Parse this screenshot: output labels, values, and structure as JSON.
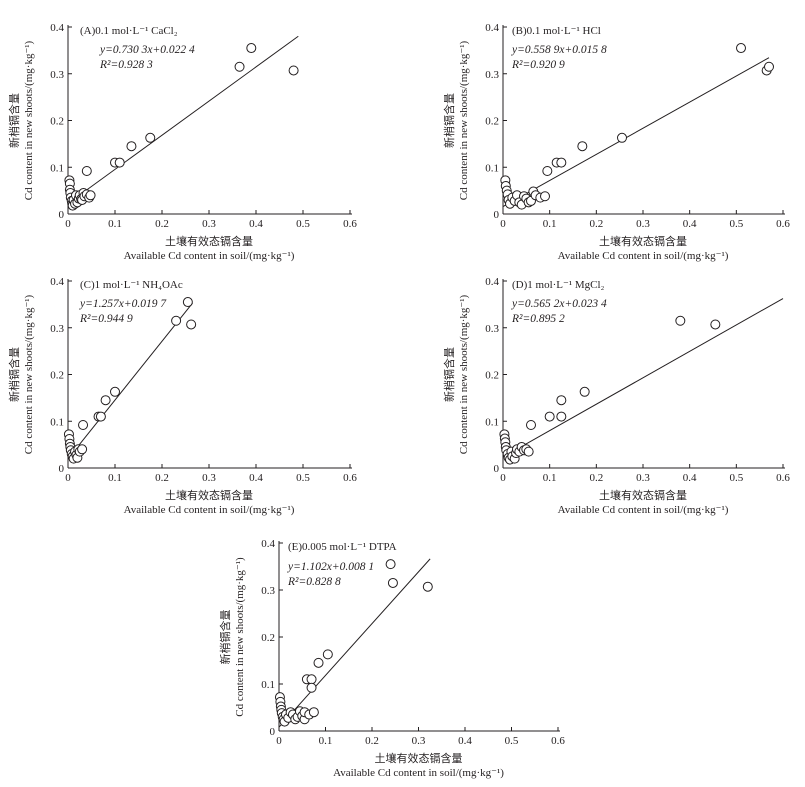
{
  "axis_text": {
    "xlabel_cn": "土壤有效态镉含量",
    "xlabel_en": "Available Cd content in soil/(mg·kg⁻¹)",
    "ylabel_cn": "新梢镉含量",
    "ylabel_en": "Cd content in new shoots/(mg·kg⁻¹)"
  },
  "chart_data": [
    {
      "type": "scatter",
      "title": "(A)0.1 mol·L⁻¹ CaCl₂",
      "equation": "y=0.730 3x+0.022 4",
      "r2": "R²=0.928 3",
      "xlim": [
        0,
        0.6
      ],
      "ylim": [
        0,
        0.4
      ],
      "xticks": [
        "0",
        "0.1",
        "0.2",
        "0.3",
        "0.4",
        "0.5",
        "0.6"
      ],
      "yticks": [
        "0",
        "0.1",
        "0.2",
        "0.3",
        "0.4"
      ],
      "fit": {
        "slope": 0.7303,
        "intercept": 0.0224,
        "x0": 0.0,
        "x1": 0.49
      },
      "points": [
        [
          0.003,
          0.072
        ],
        [
          0.004,
          0.065
        ],
        [
          0.004,
          0.052
        ],
        [
          0.005,
          0.045
        ],
        [
          0.006,
          0.035
        ],
        [
          0.008,
          0.028
        ],
        [
          0.009,
          0.022
        ],
        [
          0.01,
          0.018
        ],
        [
          0.012,
          0.03
        ],
        [
          0.015,
          0.022
        ],
        [
          0.017,
          0.04
        ],
        [
          0.02,
          0.025
        ],
        [
          0.023,
          0.033
        ],
        [
          0.025,
          0.04
        ],
        [
          0.028,
          0.032
        ],
        [
          0.03,
          0.03
        ],
        [
          0.033,
          0.045
        ],
        [
          0.035,
          0.038
        ],
        [
          0.04,
          0.042
        ],
        [
          0.045,
          0.035
        ],
        [
          0.048,
          0.04
        ],
        [
          0.04,
          0.092
        ],
        [
          0.1,
          0.11
        ],
        [
          0.11,
          0.11
        ],
        [
          0.135,
          0.145
        ],
        [
          0.175,
          0.163
        ],
        [
          0.365,
          0.315
        ],
        [
          0.39,
          0.355
        ],
        [
          0.48,
          0.307
        ]
      ]
    },
    {
      "type": "scatter",
      "title": "(B)0.1 mol·L⁻¹ HCl",
      "equation": "y=0.558 9x+0.015 8",
      "r2": "R²=0.920 9",
      "xlim": [
        0,
        0.6
      ],
      "ylim": [
        0,
        0.4
      ],
      "xticks": [
        "0",
        "0.1",
        "0.2",
        "0.3",
        "0.4",
        "0.5",
        "0.6"
      ],
      "yticks": [
        "0",
        "0.1",
        "0.2",
        "0.3",
        "0.4"
      ],
      "fit": {
        "slope": 0.5589,
        "intercept": 0.0158,
        "x0": 0.0,
        "x1": 0.57
      },
      "points": [
        [
          0.005,
          0.072
        ],
        [
          0.006,
          0.06
        ],
        [
          0.008,
          0.05
        ],
        [
          0.01,
          0.042
        ],
        [
          0.012,
          0.03
        ],
        [
          0.015,
          0.022
        ],
        [
          0.02,
          0.035
        ],
        [
          0.025,
          0.028
        ],
        [
          0.03,
          0.04
        ],
        [
          0.035,
          0.025
        ],
        [
          0.04,
          0.02
        ],
        [
          0.045,
          0.038
        ],
        [
          0.05,
          0.033
        ],
        [
          0.055,
          0.025
        ],
        [
          0.06,
          0.028
        ],
        [
          0.065,
          0.048
        ],
        [
          0.07,
          0.04
        ],
        [
          0.08,
          0.035
        ],
        [
          0.09,
          0.038
        ],
        [
          0.095,
          0.092
        ],
        [
          0.115,
          0.11
        ],
        [
          0.125,
          0.11
        ],
        [
          0.17,
          0.145
        ],
        [
          0.255,
          0.163
        ],
        [
          0.51,
          0.355
        ],
        [
          0.565,
          0.307
        ],
        [
          0.57,
          0.315
        ]
      ]
    },
    {
      "type": "scatter",
      "title": "(C)1 mol·L⁻¹ NH₄OAc",
      "equation": "y=1.257x+0.019 7",
      "r2": "R²=0.944 9",
      "xlim": [
        0,
        0.6
      ],
      "ylim": [
        0,
        0.4
      ],
      "xticks": [
        "0",
        "0.1",
        "0.2",
        "0.3",
        "0.4",
        "0.5",
        "0.6"
      ],
      "yticks": [
        "0",
        "0.1",
        "0.2",
        "0.3",
        "0.4"
      ],
      "fit": {
        "slope": 1.257,
        "intercept": 0.0197,
        "x0": 0.0,
        "x1": 0.265
      },
      "points": [
        [
          0.002,
          0.072
        ],
        [
          0.003,
          0.062
        ],
        [
          0.004,
          0.052
        ],
        [
          0.005,
          0.045
        ],
        [
          0.006,
          0.038
        ],
        [
          0.008,
          0.03
        ],
        [
          0.01,
          0.025
        ],
        [
          0.012,
          0.02
        ],
        [
          0.015,
          0.035
        ],
        [
          0.018,
          0.028
        ],
        [
          0.02,
          0.022
        ],
        [
          0.022,
          0.04
        ],
        [
          0.025,
          0.035
        ],
        [
          0.03,
          0.04
        ],
        [
          0.032,
          0.092
        ],
        [
          0.065,
          0.11
        ],
        [
          0.07,
          0.11
        ],
        [
          0.08,
          0.145
        ],
        [
          0.1,
          0.163
        ],
        [
          0.23,
          0.315
        ],
        [
          0.255,
          0.355
        ],
        [
          0.262,
          0.307
        ]
      ]
    },
    {
      "type": "scatter",
      "title": "(D)1 mol·L⁻¹ MgCl₂",
      "equation": "y=0.565 2x+0.023 4",
      "r2": "R²=0.895 2",
      "xlim": [
        0,
        0.6
      ],
      "ylim": [
        0,
        0.4
      ],
      "xticks": [
        "0",
        "0.1",
        "0.2",
        "0.3",
        "0.4",
        "0.5",
        "0.6"
      ],
      "yticks": [
        "0",
        "0.1",
        "0.2",
        "0.3",
        "0.4"
      ],
      "fit": {
        "slope": 0.5652,
        "intercept": 0.0234,
        "x0": 0.0,
        "x1": 0.6
      },
      "points": [
        [
          0.003,
          0.072
        ],
        [
          0.004,
          0.063
        ],
        [
          0.005,
          0.055
        ],
        [
          0.006,
          0.045
        ],
        [
          0.007,
          0.038
        ],
        [
          0.01,
          0.03
        ],
        [
          0.012,
          0.022
        ],
        [
          0.015,
          0.018
        ],
        [
          0.018,
          0.035
        ],
        [
          0.02,
          0.025
        ],
        [
          0.025,
          0.02
        ],
        [
          0.028,
          0.032
        ],
        [
          0.03,
          0.04
        ],
        [
          0.035,
          0.035
        ],
        [
          0.04,
          0.045
        ],
        [
          0.045,
          0.038
        ],
        [
          0.05,
          0.04
        ],
        [
          0.055,
          0.035
        ],
        [
          0.06,
          0.092
        ],
        [
          0.1,
          0.11
        ],
        [
          0.125,
          0.11
        ],
        [
          0.125,
          0.145
        ],
        [
          0.175,
          0.163
        ],
        [
          0.38,
          0.315
        ],
        [
          0.455,
          0.307
        ]
      ]
    },
    {
      "type": "scatter",
      "title": "(E)0.005 mol·L⁻¹ DTPA",
      "equation": "y=1.102x+0.008 1",
      "r2": "R²=0.828 8",
      "xlim": [
        0,
        0.6
      ],
      "ylim": [
        0,
        0.4
      ],
      "xticks": [
        "0",
        "0.1",
        "0.2",
        "0.3",
        "0.4",
        "0.5",
        "0.6"
      ],
      "yticks": [
        "0",
        "0.1",
        "0.2",
        "0.3",
        "0.4"
      ],
      "fit": {
        "slope": 1.102,
        "intercept": 0.0081,
        "x0": 0.0,
        "x1": 0.325
      },
      "points": [
        [
          0.002,
          0.072
        ],
        [
          0.003,
          0.062
        ],
        [
          0.004,
          0.052
        ],
        [
          0.005,
          0.045
        ],
        [
          0.006,
          0.038
        ],
        [
          0.008,
          0.03
        ],
        [
          0.01,
          0.025
        ],
        [
          0.012,
          0.02
        ],
        [
          0.015,
          0.035
        ],
        [
          0.02,
          0.028
        ],
        [
          0.025,
          0.04
        ],
        [
          0.03,
          0.035
        ],
        [
          0.035,
          0.025
        ],
        [
          0.04,
          0.03
        ],
        [
          0.045,
          0.042
        ],
        [
          0.05,
          0.032
        ],
        [
          0.055,
          0.025
        ],
        [
          0.055,
          0.04
        ],
        [
          0.06,
          0.11
        ],
        [
          0.065,
          0.035
        ],
        [
          0.07,
          0.11
        ],
        [
          0.07,
          0.092
        ],
        [
          0.075,
          0.04
        ],
        [
          0.085,
          0.145
        ],
        [
          0.105,
          0.163
        ],
        [
          0.24,
          0.355
        ],
        [
          0.245,
          0.315
        ],
        [
          0.32,
          0.307
        ]
      ]
    }
  ]
}
